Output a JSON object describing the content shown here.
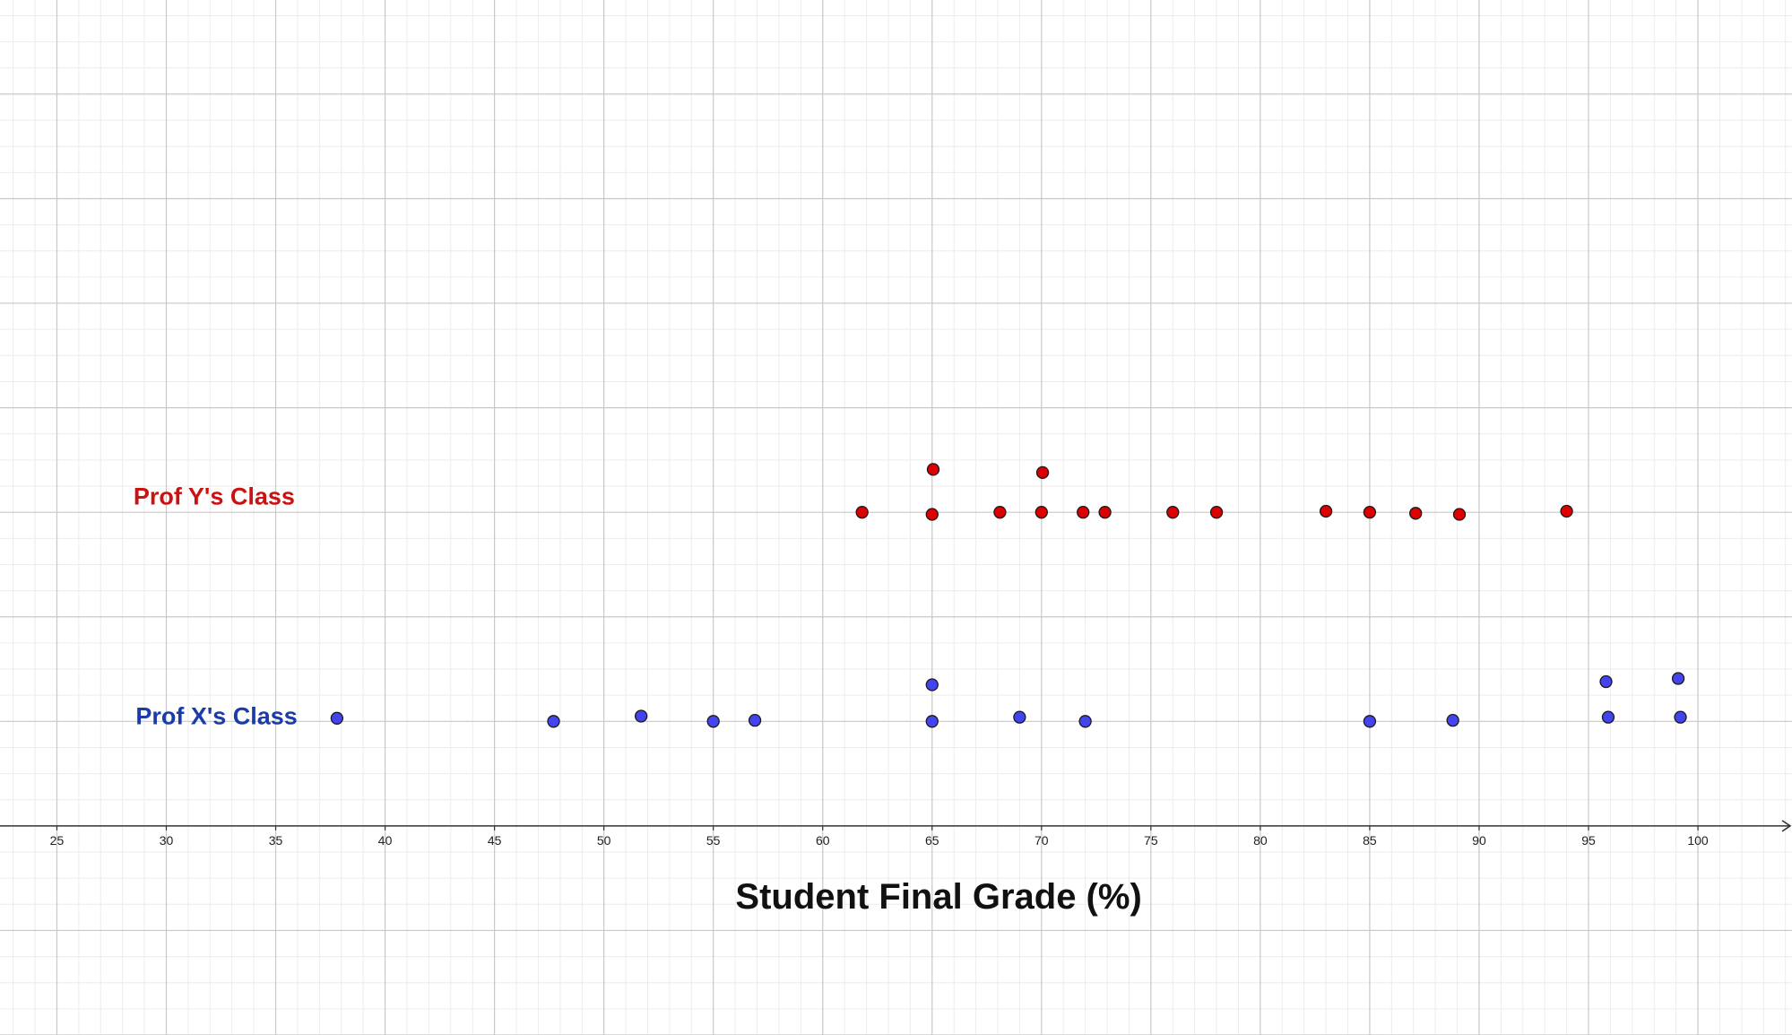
{
  "chart_data": {
    "type": "scatter",
    "title": "",
    "xlabel": "Student Final Grade (%)",
    "ylabel": "",
    "xlim": [
      22.4,
      104.3
    ],
    "ylim": [
      -2,
      7.9
    ],
    "x_ticks": [
      25,
      30,
      35,
      40,
      45,
      50,
      55,
      60,
      65,
      70,
      75,
      80,
      85,
      90,
      95,
      100
    ],
    "grid": true,
    "series": [
      {
        "name": "Prof Y's Class",
        "color": "#dd0000",
        "label_color": "#cc1111",
        "label_x": 28.5,
        "label_y": 3.15,
        "points": [
          {
            "x": 61.8,
            "y": 3
          },
          {
            "x": 65.0,
            "y": 2.98
          },
          {
            "x": 65.05,
            "y": 3.41
          },
          {
            "x": 68.1,
            "y": 3
          },
          {
            "x": 70.0,
            "y": 3
          },
          {
            "x": 70.05,
            "y": 3.38
          },
          {
            "x": 71.9,
            "y": 3
          },
          {
            "x": 72.9,
            "y": 3
          },
          {
            "x": 76.0,
            "y": 3
          },
          {
            "x": 78.0,
            "y": 3
          },
          {
            "x": 83.0,
            "y": 3.01
          },
          {
            "x": 85.0,
            "y": 3
          },
          {
            "x": 87.1,
            "y": 2.99
          },
          {
            "x": 89.1,
            "y": 2.98
          },
          {
            "x": 94.0,
            "y": 3.01
          }
        ]
      },
      {
        "name": "Prof X's Class",
        "color": "#4444ee",
        "label_color": "#1a3caa",
        "label_x": 28.6,
        "label_y": 1.05,
        "points": [
          {
            "x": 37.8,
            "y": 1.03
          },
          {
            "x": 47.7,
            "y": 1.0
          },
          {
            "x": 51.7,
            "y": 1.05
          },
          {
            "x": 55.0,
            "y": 1.0
          },
          {
            "x": 56.9,
            "y": 1.01
          },
          {
            "x": 65.0,
            "y": 1.35
          },
          {
            "x": 65.0,
            "y": 1.0
          },
          {
            "x": 69.0,
            "y": 1.04
          },
          {
            "x": 72.0,
            "y": 1.0
          },
          {
            "x": 85.0,
            "y": 1.0
          },
          {
            "x": 88.8,
            "y": 1.01
          },
          {
            "x": 95.8,
            "y": 1.38
          },
          {
            "x": 95.9,
            "y": 1.04
          },
          {
            "x": 99.1,
            "y": 1.41
          },
          {
            "x": 99.2,
            "y": 1.04
          }
        ]
      }
    ]
  }
}
